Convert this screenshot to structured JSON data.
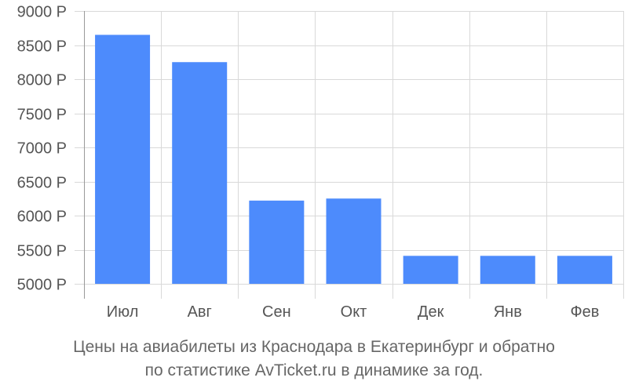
{
  "chart_data": {
    "type": "bar",
    "categories": [
      "Июл",
      "Авг",
      "Сен",
      "Окт",
      "Дек",
      "Янв",
      "Фев"
    ],
    "values": [
      8650,
      8250,
      6220,
      6250,
      5410,
      5410,
      5410
    ],
    "ylim": [
      5000,
      9000
    ],
    "yticks": [
      5000,
      5500,
      6000,
      6500,
      7000,
      7500,
      8000,
      8500,
      9000
    ],
    "ytick_labels": [
      "5000 Р",
      "5500 Р",
      "6000 Р",
      "6500 Р",
      "7000 Р",
      "7500 Р",
      "8000 Р",
      "8500 Р",
      "9000 Р"
    ],
    "grid": true,
    "bar_color": "#4d8bfc",
    "title": "",
    "xlabel": "",
    "ylabel": ""
  },
  "caption": {
    "line1": "Цены на авиабилеты из Краснодара в Екатеринбург и обратно",
    "line2": "по статистике AvTicket.ru в динамике за год."
  }
}
